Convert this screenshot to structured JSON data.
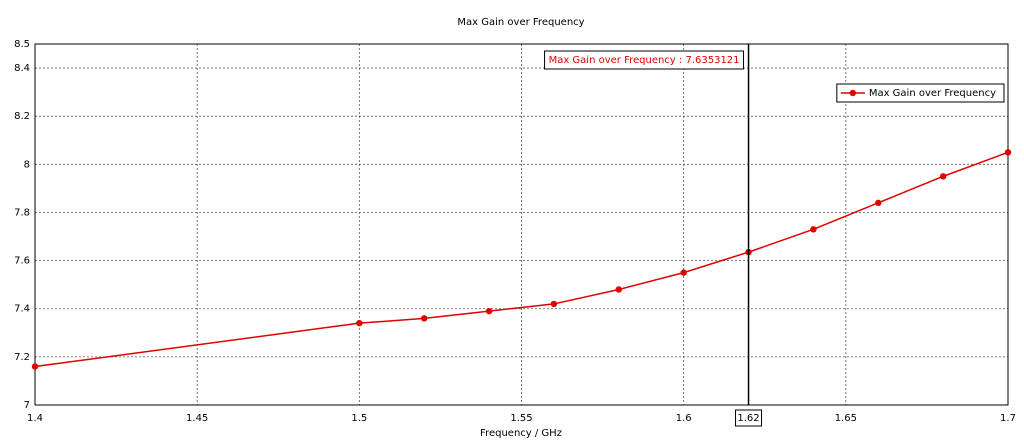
{
  "chart_data": {
    "type": "line",
    "title": "Max Gain over Frequency",
    "x_label": "Frequency / GHz",
    "x": [
      1.4,
      1.5,
      1.52,
      1.54,
      1.56,
      1.58,
      1.6,
      1.62,
      1.64,
      1.66,
      1.68,
      1.7
    ],
    "series": [
      {
        "name": "Max Gain over Frequency",
        "color": "#e00000",
        "values": [
          7.16,
          7.34,
          7.36,
          7.39,
          7.42,
          7.48,
          7.55,
          7.6353121,
          7.73,
          7.84,
          7.95,
          8.05
        ]
      }
    ],
    "xlim": [
      1.4,
      1.7
    ],
    "xticks": [
      1.4,
      1.45,
      1.5,
      1.55,
      1.6,
      1.65,
      1.7
    ],
    "ylim": [
      7,
      8.5
    ],
    "yticks": [
      7,
      7.2,
      7.4,
      7.6,
      7.8,
      8,
      8.2,
      8.4,
      8.5
    ],
    "grid": true,
    "legend": "top-right",
    "cursor_x": 1.62,
    "cursor_label": "Max Gain over Frequency : 7.6353121"
  }
}
